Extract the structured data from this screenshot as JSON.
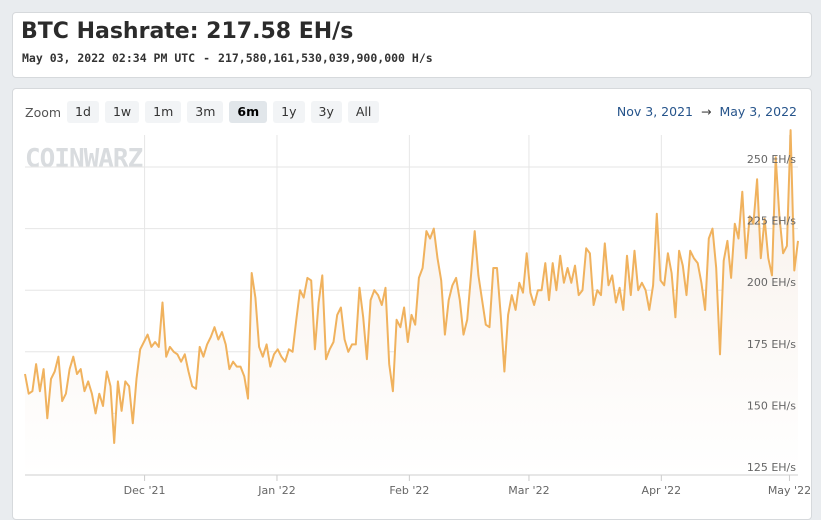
{
  "header": {
    "title": "BTC Hashrate: 217.58 EH/s",
    "timestamp": "May 03, 2022 02:34 PM UTC",
    "separator": "-",
    "hashrate_full": "217,580,161,530,039,900,000 H/s"
  },
  "toolbar": {
    "zoom_label": "Zoom",
    "buttons": [
      "1d",
      "1w",
      "1m",
      "3m",
      "6m",
      "1y",
      "3y",
      "All"
    ],
    "active": "6m"
  },
  "range": {
    "from": "Nov 3, 2021",
    "arrow": "→",
    "to": "May 3, 2022"
  },
  "watermark": "COINWARZ",
  "colors": {
    "line": "#f0b25e",
    "area_top": "#f7efe8",
    "grid": "#e6e6e6",
    "range_text": "#26548b"
  },
  "chart_data": {
    "type": "area",
    "unit": "EH/s",
    "y_ticks": [
      {
        "value": 125,
        "label": "125 EH/s"
      },
      {
        "value": 150,
        "label": "150 EH/s"
      },
      {
        "value": 175,
        "label": "175 EH/s"
      },
      {
        "value": 200,
        "label": "200 EH/s"
      },
      {
        "value": 225,
        "label": "225 EH/s"
      },
      {
        "value": 250,
        "label": "250 EH/s"
      }
    ],
    "ylim": [
      125,
      263
    ],
    "x_range": [
      "2021-11-03",
      "2022-05-03"
    ],
    "x_ticks": [
      {
        "date": "2021-12-01",
        "label": "Dec '21"
      },
      {
        "date": "2022-01-01",
        "label": "Jan '22"
      },
      {
        "date": "2022-02-01",
        "label": "Feb '22"
      },
      {
        "date": "2022-03-01",
        "label": "Mar '22"
      },
      {
        "date": "2022-04-01",
        "label": "Apr '22"
      },
      {
        "date": "2022-05-01",
        "label": "May '22"
      }
    ],
    "series": [
      {
        "start_date": "2021-11-03",
        "values": [
          166,
          158,
          159,
          170,
          159,
          168,
          148,
          164,
          167,
          173,
          155,
          158,
          168,
          173,
          166,
          168,
          159,
          163,
          158,
          150,
          158,
          153,
          167,
          161,
          138,
          163,
          151,
          163,
          161,
          146,
          164,
          176,
          179,
          182,
          177,
          179,
          177,
          195,
          173,
          177,
          175,
          174,
          171,
          174,
          167,
          161,
          160,
          177,
          173,
          178,
          181,
          185,
          180,
          183,
          178,
          168,
          171,
          169,
          169,
          165,
          156,
          207,
          197,
          177,
          173,
          178,
          169,
          174,
          176,
          173,
          171,
          176,
          175,
          188,
          200,
          197,
          205,
          204,
          176,
          195,
          206,
          172,
          176,
          179,
          190,
          193,
          180,
          175,
          178,
          178,
          201,
          189,
          172,
          196,
          200,
          198,
          194,
          201,
          170,
          159,
          188,
          185,
          193,
          179,
          190,
          186,
          205,
          209,
          224,
          221,
          225,
          213,
          204,
          182,
          196,
          202,
          205,
          196,
          182,
          188,
          206,
          224,
          206,
          196,
          186,
          185,
          209,
          209,
          190,
          167,
          190,
          198,
          192,
          203,
          199,
          215,
          199,
          194,
          200,
          200,
          211,
          196,
          211,
          200,
          214,
          203,
          209,
          203,
          210,
          198,
          200,
          217,
          215,
          194,
          200,
          198,
          219,
          202,
          206,
          195,
          201,
          192,
          214,
          198,
          216,
          200,
          203,
          200,
          192,
          202,
          231,
          204,
          202,
          215,
          207,
          189,
          216,
          210,
          198,
          216,
          213,
          211,
          203,
          192,
          221,
          225,
          209,
          174,
          212,
          220,
          205,
          227,
          221,
          240,
          213,
          230,
          227,
          245,
          213,
          229,
          213,
          206,
          254,
          230,
          215,
          218,
          265,
          208,
          220
        ]
      }
    ]
  }
}
